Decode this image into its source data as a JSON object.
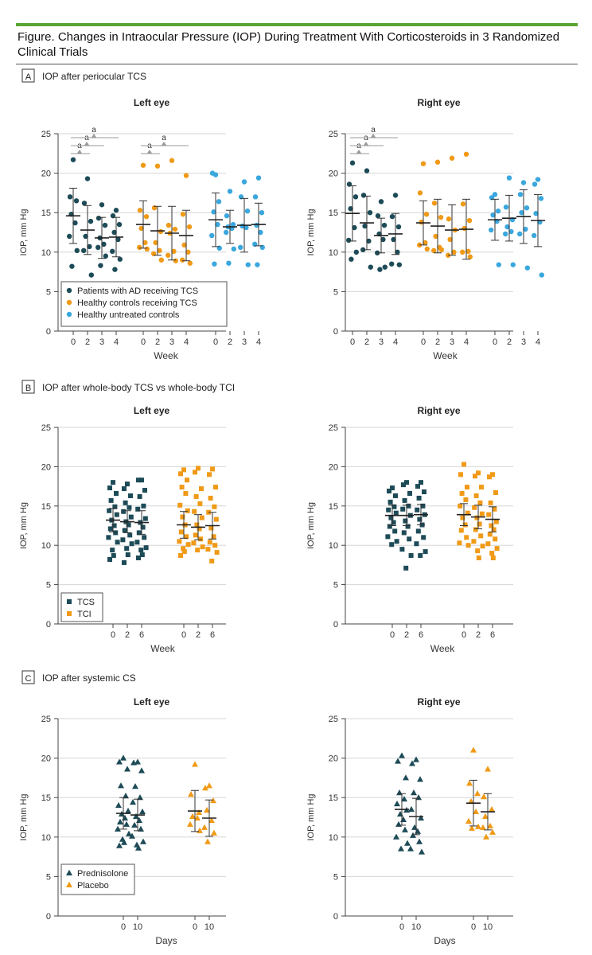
{
  "figure": {
    "title": "Figure. Changes in Intraocular Pressure (IOP) During Treatment With Corticosteroids in 3 Randomized Clinical Trials"
  },
  "colors": {
    "navy": "#1d4b57",
    "orange": "#f09a17",
    "lightblue": "#3aa7dd",
    "accent": "#5aa532"
  },
  "chart_data": [
    {
      "panel": "A",
      "panel_title": "IOP after periocular TCS",
      "eye": "Left eye",
      "type": "scatter",
      "ylabel": "IOP, mm Hg",
      "xlabel": "Week",
      "ylim": [
        0,
        25
      ],
      "yticks": [
        0,
        5,
        10,
        15,
        20,
        25
      ],
      "grid": true,
      "categories": [
        "0",
        "2",
        "3",
        "4"
      ],
      "series": [
        {
          "name": "Patients with AD receiving TCS",
          "color": "navy",
          "marker": "circle",
          "points": [
            [
              21.7,
              17.0,
              16.5,
              14.8,
              13.7,
              12.0,
              10.2,
              8.2
            ],
            [
              19.3,
              16.2,
              13.9,
              12.0,
              10.7,
              10.2,
              7.1
            ],
            [
              16.0,
              14.3,
              13.4,
              11.8,
              11.0,
              10.6,
              9.5,
              8.3
            ],
            [
              15.3,
              14.6,
              13.5,
              12.5,
              11.6,
              10.1,
              9.1,
              7.8
            ]
          ],
          "mean": [
            14.6,
            12.8,
            11.8,
            11.9
          ],
          "sd": [
            3.5,
            3.1,
            2.6,
            2.5
          ]
        },
        {
          "name": "Healthy controls receiving TCS",
          "color": "orange",
          "marker": "circle",
          "points": [
            [
              21.0,
              15.3,
              14.5,
              13.0,
              11.2,
              10.6,
              10.4
            ],
            [
              20.9,
              15.6,
              12.6,
              11.2,
              10.2,
              9.8,
              9.0
            ],
            [
              21.6,
              13.4,
              12.9,
              12.4,
              10.1,
              9.6,
              8.9
            ],
            [
              19.7,
              14.8,
              13.2,
              10.9,
              10.0,
              9.0,
              8.6
            ]
          ],
          "mean": [
            13.5,
            12.7,
            12.4,
            12.1
          ],
          "sd": [
            3.0,
            3.1,
            3.4,
            3.2
          ]
        },
        {
          "name": "Healthy untreated controls",
          "color": "lightblue",
          "marker": "circle",
          "points": [
            [
              19.8,
              20.0,
              16.4,
              15.1,
              13.5,
              12.1,
              10.5,
              8.5
            ],
            [
              17.7,
              14.6,
              13.5,
              13.2,
              13.0,
              12.5,
              10.4,
              8.6
            ],
            [
              18.9,
              17.0,
              15.2,
              13.3,
              13.1,
              10.6,
              8.4
            ],
            [
              19.4,
              17.0,
              15.0,
              13.4,
              12.5,
              11.0,
              10.6,
              8.4
            ]
          ],
          "mean": [
            14.1,
            13.2,
            13.4,
            13.5
          ],
          "sd": [
            3.4,
            2.1,
            3.4,
            2.7
          ]
        }
      ],
      "significance": [
        {
          "group": 0,
          "from": 0,
          "to": 1,
          "level": 0,
          "label": "a"
        },
        {
          "group": 0,
          "from": 0,
          "to": 2,
          "level": 1,
          "label": "a"
        },
        {
          "group": 0,
          "from": 0,
          "to": 3,
          "level": 2,
          "label": "a"
        },
        {
          "group": 1,
          "from": 0,
          "to": 1,
          "level": 0,
          "label": "a"
        },
        {
          "group": 1,
          "from": 0,
          "to": 3,
          "level": 1,
          "label": "a"
        }
      ],
      "legend": {
        "position": "bottom-left",
        "entries": [
          "Patients with AD receiving TCS",
          "Healthy controls receiving TCS",
          "Healthy untreated controls"
        ]
      }
    },
    {
      "panel": "A",
      "eye": "Right eye",
      "type": "scatter",
      "ylabel": "IOP, mm Hg",
      "xlabel": "Week",
      "ylim": [
        0,
        25
      ],
      "yticks": [
        0,
        5,
        10,
        15,
        20,
        25
      ],
      "grid": true,
      "categories": [
        "0",
        "2",
        "3",
        "4"
      ],
      "series": [
        {
          "name": "Patients with AD receiving TCS",
          "color": "navy",
          "marker": "circle",
          "points": [
            [
              21.3,
              18.6,
              17.0,
              15.5,
              13.1,
              11.5,
              10.0,
              9.1
            ],
            [
              20.3,
              17.2,
              15.0,
              13.3,
              11.4,
              10.3,
              8.1
            ],
            [
              16.4,
              14.6,
              13.4,
              12.3,
              11.6,
              9.9,
              8.1,
              7.8
            ],
            [
              17.2,
              14.5,
              13.2,
              11.6,
              10.0,
              8.5,
              8.4
            ]
          ],
          "mean": [
            14.9,
            13.7,
            12.1,
            12.3
          ],
          "sd": [
            3.5,
            3.4,
            2.2,
            2.6
          ]
        },
        {
          "name": "Healthy controls receiving TCS",
          "color": "orange",
          "marker": "circle",
          "points": [
            [
              21.2,
              17.5,
              14.8,
              13.8,
              11.2,
              10.9,
              10.4
            ],
            [
              21.4,
              16.2,
              14.4,
              12.0,
              10.6,
              10.2,
              10.3
            ],
            [
              21.9,
              14.2,
              12.8,
              11.6,
              10.0,
              9.6
            ],
            [
              22.4,
              16.1,
              14.0,
              13.0,
              10.1,
              10.0,
              9.4
            ]
          ],
          "mean": [
            13.7,
            13.3,
            12.8,
            12.9
          ],
          "sd": [
            2.8,
            3.4,
            3.2,
            3.8
          ]
        },
        {
          "name": "Healthy untreated controls",
          "color": "lightblue",
          "marker": "circle",
          "points": [
            [
              17.3,
              16.9,
              15.2,
              14.7,
              13.9,
              12.8,
              8.4
            ],
            [
              19.4,
              15.7,
              14.1,
              13.2,
              12.6,
              12.3,
              8.4
            ],
            [
              18.8,
              17.3,
              15.6,
              15.0,
              12.9,
              12.3,
              8.0
            ],
            [
              19.2,
              18.6,
              16.8,
              14.9,
              13.8,
              12.1,
              7.1
            ]
          ],
          "mean": [
            14.1,
            14.3,
            14.5,
            14.0
          ],
          "sd": [
            2.6,
            2.9,
            3.4,
            3.3
          ]
        }
      ],
      "significance": [
        {
          "group": 0,
          "from": 0,
          "to": 1,
          "level": 0,
          "label": "a"
        },
        {
          "group": 0,
          "from": 0,
          "to": 2,
          "level": 1,
          "label": "a"
        },
        {
          "group": 0,
          "from": 0,
          "to": 3,
          "level": 2,
          "label": "a"
        }
      ]
    },
    {
      "panel": "B",
      "panel_title": "IOP after whole-body TCS vs whole-body TCI",
      "eye": "Left eye",
      "type": "scatter",
      "ylabel": "IOP, mm Hg",
      "xlabel": "Week",
      "ylim": [
        0,
        25
      ],
      "yticks": [
        0,
        5,
        10,
        15,
        20,
        25
      ],
      "grid": true,
      "categories": [
        "0",
        "2",
        "6"
      ],
      "series": [
        {
          "name": "TCS",
          "color": "navy",
          "marker": "square",
          "points": [
            [
              18.0,
              17.3,
              16.6,
              15.7,
              14.9,
              14.4,
              13.9,
              13.2,
              12.5,
              12.1,
              11.6,
              11.0,
              10.4,
              9.4,
              8.7,
              8.2
            ],
            [
              17.8,
              17.2,
              16.3,
              15.4,
              14.8,
              14.3,
              13.6,
              13.0,
              12.6,
              11.9,
              11.3,
              10.7,
              10.2,
              9.6,
              8.8,
              7.8
            ],
            [
              18.3,
              18.3,
              17.0,
              16.2,
              15.0,
              14.6,
              13.4,
              12.9,
              12.3,
              11.6,
              11.0,
              10.4,
              9.7,
              9.4,
              8.8,
              8.4
            ]
          ],
          "mean": [
            13.2,
            13.0,
            12.9
          ],
          "sd": [
            1.5,
            1.4,
            1.5
          ]
        },
        {
          "name": "TCI",
          "color": "orange",
          "marker": "square",
          "points": [
            [
              19.6,
              19.1,
              18.3,
              17.4,
              16.6,
              15.1,
              14.4,
              13.6,
              12.6,
              11.7,
              11.1,
              10.5,
              10.1,
              9.6,
              9.2,
              8.7
            ],
            [
              19.8,
              19.3,
              17.2,
              16.2,
              15.3,
              14.3,
              13.5,
              12.6,
              12.1,
              11.3,
              10.8,
              10.3,
              9.8,
              9.4
            ],
            [
              19.7,
              19.0,
              17.4,
              16.0,
              14.9,
              14.2,
              13.3,
              12.2,
              11.1,
              10.4,
              10.0,
              9.5,
              9.1,
              8.0
            ]
          ],
          "mean": [
            12.6,
            12.3,
            12.5
          ],
          "sd": [
            1.7,
            1.6,
            1.7
          ]
        }
      ],
      "legend": {
        "position": "bottom-left",
        "entries": [
          "TCS",
          "TCI"
        ]
      }
    },
    {
      "panel": "B",
      "eye": "Right eye",
      "type": "scatter",
      "ylabel": "IOP, mm Hg",
      "xlabel": "Week",
      "ylim": [
        0,
        25
      ],
      "yticks": [
        0,
        5,
        10,
        15,
        20,
        25
      ],
      "grid": true,
      "categories": [
        "0",
        "2",
        "6"
      ],
      "series": [
        {
          "name": "TCS",
          "color": "navy",
          "marker": "square",
          "points": [
            [
              17.3,
              16.9,
              16.3,
              15.5,
              14.9,
              14.5,
              14.1,
              13.5,
              12.9,
              12.4,
              11.8,
              11.1,
              10.5,
              10.1
            ],
            [
              18.0,
              17.7,
              16.6,
              15.7,
              15.0,
              14.6,
              13.8,
              13.1,
              12.4,
              11.6,
              10.8,
              9.5,
              8.7,
              7.1
            ],
            [
              18.0,
              17.5,
              16.8,
              16.0,
              15.0,
              14.5,
              13.9,
              13.3,
              12.6,
              11.8,
              11.0,
              10.2,
              9.2,
              8.7
            ]
          ],
          "mean": [
            13.8,
            13.8,
            13.9
          ],
          "sd": [
            1.3,
            1.3,
            1.3
          ]
        },
        {
          "name": "TCI",
          "color": "orange",
          "marker": "square",
          "points": [
            [
              20.3,
              19.0,
              17.4,
              16.6,
              15.8,
              15.0,
              14.1,
              13.5,
              12.6,
              11.9,
              11.0,
              10.3,
              10.0
            ],
            [
              19.2,
              18.8,
              17.4,
              16.3,
              15.4,
              14.8,
              14.0,
              13.5,
              12.7,
              12.0,
              11.2,
              10.5,
              9.9,
              9.3,
              8.4
            ],
            [
              19.0,
              18.7,
              16.7,
              15.4,
              14.6,
              13.9,
              13.0,
              12.5,
              12.0,
              11.4,
              10.8,
              10.2,
              9.6,
              9.0,
              8.4
            ]
          ],
          "mean": [
            13.9,
            13.6,
            13.3
          ],
          "sd": [
            1.4,
            1.5,
            1.6
          ]
        }
      ]
    },
    {
      "panel": "C",
      "panel_title": "IOP after systemic CS",
      "eye": "Left eye",
      "type": "scatter",
      "ylabel": "IOP, mm Hg",
      "xlabel": "Days",
      "ylim": [
        0,
        25
      ],
      "yticks": [
        0,
        5,
        10,
        15,
        20,
        25
      ],
      "grid": true,
      "categories": [
        "0",
        "10"
      ],
      "series": [
        {
          "name": "Prednisolone",
          "color": "navy",
          "marker": "triangle",
          "points": [
            [
              20.0,
              19.5,
              18.6,
              16.5,
              15.2,
              14.0,
              13.3,
              12.9,
              12.4,
              11.9,
              11.6,
              11.0,
              10.4,
              9.7,
              9.3,
              8.9
            ],
            [
              19.5,
              19.4,
              18.4,
              16.4,
              15.0,
              14.4,
              13.2,
              12.6,
              12.1,
              11.5,
              11.0,
              10.1,
              9.4,
              9.0,
              8.6
            ]
          ],
          "mean": [
            13.0,
            12.8
          ],
          "sd": [
            2.0,
            2.0
          ]
        },
        {
          "name": "Placebo",
          "color": "orange",
          "marker": "triangle",
          "points": [
            [
              19.2,
              15.4,
              13.1,
              12.6,
              12.4,
              11.6,
              10.8
            ],
            [
              16.5,
              16.2,
              14.6,
              13.4,
              12.1,
              11.2,
              10.5,
              9.4
            ]
          ],
          "mean": [
            13.3,
            12.4
          ],
          "sd": [
            2.6,
            2.3
          ]
        }
      ],
      "legend": {
        "position": "bottom-left",
        "entries": [
          "Prednisolone",
          "Placebo"
        ]
      }
    },
    {
      "panel": "C",
      "eye": "Right eye",
      "type": "scatter",
      "ylabel": "IOP, mm Hg",
      "xlabel": "Days",
      "ylim": [
        0,
        25
      ],
      "yticks": [
        0,
        5,
        10,
        15,
        20,
        25
      ],
      "grid": true,
      "categories": [
        "0",
        "10"
      ],
      "series": [
        {
          "name": "Prednisolone",
          "color": "navy",
          "marker": "triangle",
          "points": [
            [
              20.3,
              19.6,
              17.5,
              15.6,
              14.8,
              14.2,
              13.4,
              12.9,
              12.2,
              11.6,
              10.9,
              10.0,
              9.2,
              8.5
            ],
            [
              19.8,
              19.3,
              17.3,
              15.6,
              15.0,
              13.5,
              12.4,
              11.2,
              10.7,
              10.2,
              9.4,
              8.5,
              8.1
            ]
          ],
          "mean": [
            13.5,
            12.6
          ],
          "sd": [
            2.0,
            2.3
          ]
        },
        {
          "name": "Placebo",
          "color": "orange",
          "marker": "triangle",
          "points": [
            [
              21.0,
              16.8,
              15.5,
              14.5,
              13.2,
              12.0,
              11.3,
              11.1
            ],
            [
              18.6,
              15.1,
              13.5,
              12.6,
              11.4,
              11.2,
              10.6,
              10.0
            ]
          ],
          "mean": [
            14.3,
            13.2
          ],
          "sd": [
            2.9,
            2.3
          ]
        }
      ]
    }
  ]
}
